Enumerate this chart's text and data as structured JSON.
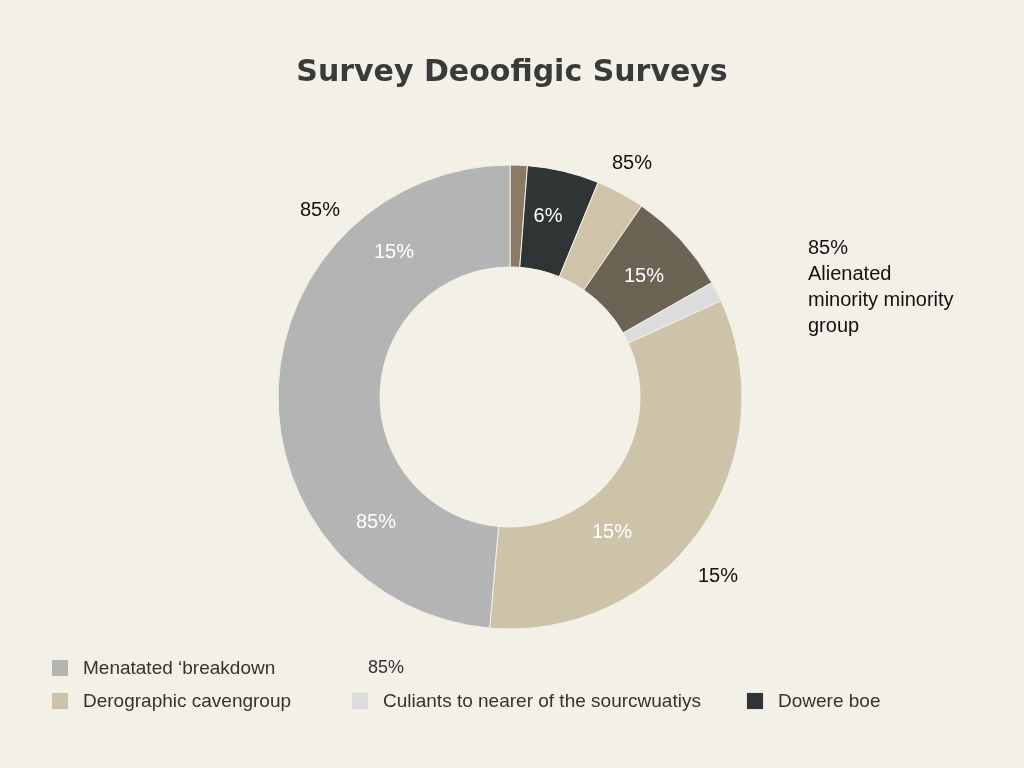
{
  "chart_data": {
    "type": "donut",
    "title": "Survey Deoofigic Surveys",
    "categories": [
      null,
      "Dowere boe",
      null,
      null,
      "Culiants to nearer of the sourcwuatiys",
      "Derographic cavengroup",
      "Menatated ‘breakdown"
    ],
    "values": [
      1.2,
      5,
      3.4,
      7.2,
      1.4,
      33.2,
      48.6
    ],
    "colors": [
      "#8b7b65",
      "#2f3435",
      "#cfc4aa",
      "#6b6455",
      "#dcdcdc",
      "#cdc3a8",
      "#b3b5b4"
    ],
    "legend": "bottom",
    "annotations": [
      "85%",
      "85%",
      "15%",
      "6%",
      "15%",
      "85%\nAlienated\nminority minority\ngroup",
      "85%",
      "15%",
      "15%",
      "85%"
    ]
  }
}
